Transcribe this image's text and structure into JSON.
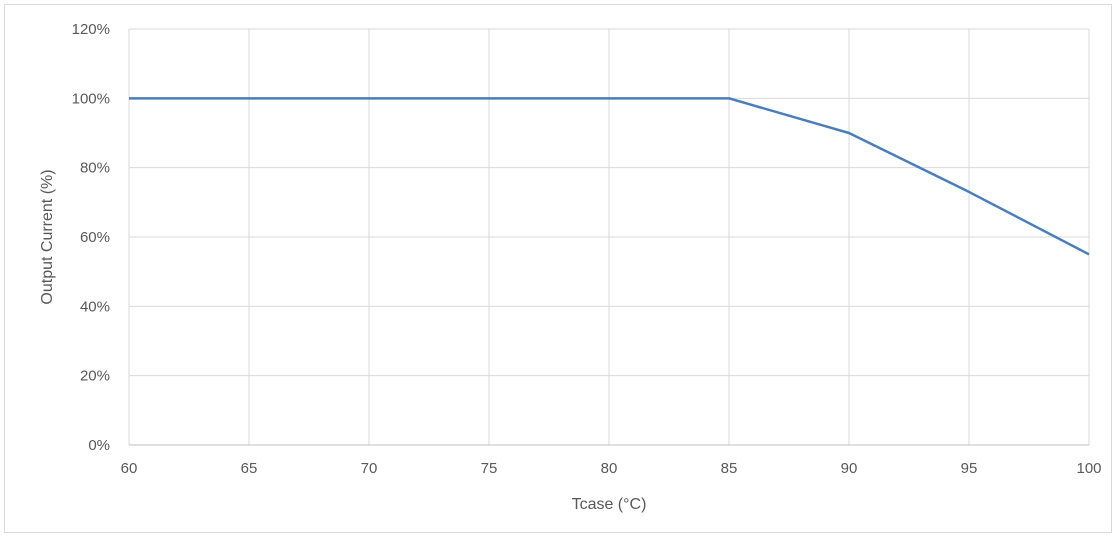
{
  "chart_data": {
    "type": "line",
    "title": "",
    "xlabel": "Tcase (°C)",
    "ylabel": "Output Current (%)",
    "xlim": [
      60,
      100
    ],
    "ylim": [
      0,
      120
    ],
    "x_ticks": [
      60,
      65,
      70,
      75,
      80,
      85,
      90,
      95,
      100
    ],
    "y_ticks": [
      0,
      20,
      40,
      60,
      80,
      100,
      120
    ],
    "x_tick_labels": [
      "60",
      "65",
      "70",
      "75",
      "80",
      "85",
      "90",
      "95",
      "100"
    ],
    "y_tick_labels": [
      "0%",
      "20%",
      "40%",
      "60%",
      "80%",
      "100%",
      "120%"
    ],
    "grid": true,
    "legend": "none",
    "series": [
      {
        "color": "#4a7ebb",
        "x": [
          60,
          85,
          90,
          95,
          100
        ],
        "y": [
          100,
          100,
          90,
          73,
          55
        ]
      }
    ]
  }
}
